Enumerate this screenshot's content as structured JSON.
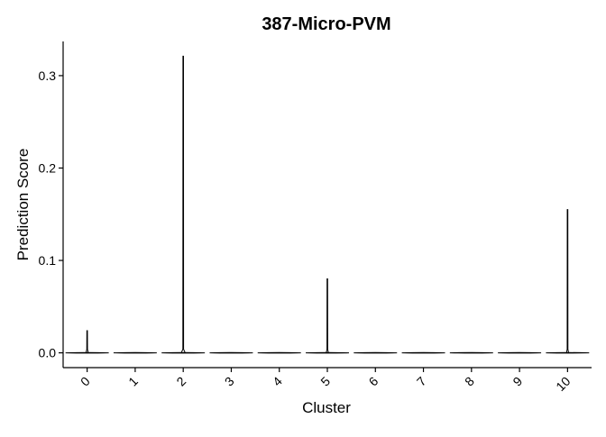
{
  "chart_data": {
    "type": "violin",
    "title": "387-Micro-PVM",
    "xlabel": "Cluster",
    "ylabel": "Prediction Score",
    "categories": [
      "0",
      "1",
      "2",
      "3",
      "4",
      "5",
      "6",
      "7",
      "8",
      "9",
      "10"
    ],
    "y_ticks": [
      0.0,
      0.1,
      0.2,
      0.3
    ],
    "y_tick_labels": [
      "0.0",
      "0.1",
      "0.2",
      "0.3"
    ],
    "ylim": [
      -0.016,
      0.337
    ],
    "max_values": [
      0.024,
      0.0,
      0.321,
      0.0,
      0.0,
      0.08,
      0.0,
      0.0,
      0.0,
      0.0,
      0.155
    ],
    "grid": false,
    "legend": "none",
    "line_color": "#000000"
  }
}
